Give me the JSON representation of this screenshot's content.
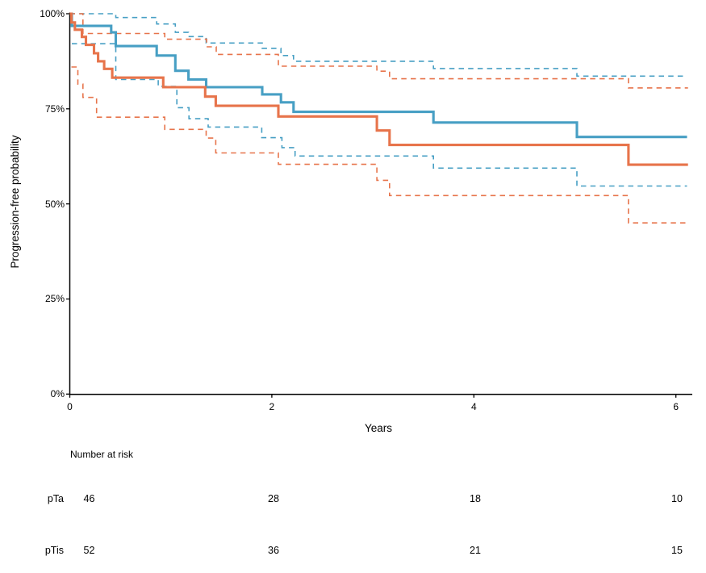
{
  "figure": {
    "background": "#FFFFFF"
  },
  "axes": {
    "y_title": "Progression-free probability",
    "x_title": "Years",
    "y_ticks": [
      {
        "pct": 100,
        "label": "100%"
      },
      {
        "pct": 75,
        "label": "75%"
      },
      {
        "pct": 50,
        "label": "50%"
      },
      {
        "pct": 25,
        "label": "25%"
      },
      {
        "pct": 0,
        "label": "0%"
      }
    ],
    "x_ticks": [
      {
        "t": 0,
        "label": "0"
      },
      {
        "t": 2,
        "label": "2"
      },
      {
        "t": 4,
        "label": "4"
      },
      {
        "t": 6,
        "label": "6"
      }
    ]
  },
  "risk_table": {
    "title": "Number at risk",
    "time_points": [
      0,
      2,
      4,
      6
    ],
    "rows": [
      {
        "label": "pTa",
        "counts": [
          "46",
          "28",
          "18",
          "10"
        ]
      },
      {
        "label": "pTis",
        "counts": [
          "52",
          "36",
          "21",
          "15"
        ]
      }
    ]
  },
  "chart_data": {
    "type": "line",
    "subtype": "kaplan_meier_step",
    "title": "",
    "xlabel": "Years",
    "ylabel": "Progression-free probability",
    "xlim": [
      0,
      6.17
    ],
    "ylim": [
      0,
      100
    ],
    "x_ticks": [
      0,
      2,
      4,
      6
    ],
    "y_tick_labels": [
      "0%",
      "25%",
      "50%",
      "75%",
      "100%"
    ],
    "legend": "none",
    "grid": false,
    "colors": {
      "pTa": "#479FC4",
      "pTis": "#E7744B",
      "axis": "#000000",
      "text": "#000000"
    },
    "groups": [
      {
        "name": "pTa",
        "color": "#479FC4",
        "n_at_risk": [
          46,
          28,
          18,
          10
        ]
      },
      {
        "name": "pTis",
        "color": "#E7744B",
        "n_at_risk": [
          52,
          36,
          21,
          15
        ]
      }
    ],
    "series": [
      {
        "name": "pTa-estimate",
        "group": "pTa",
        "role": "estimate",
        "style": "solid",
        "points": [
          [
            0,
            100
          ],
          [
            0.02,
            96.8
          ],
          [
            0.41,
            95.1
          ],
          [
            0.455,
            91.5
          ],
          [
            0.86,
            89.0
          ],
          [
            1.045,
            85.0
          ],
          [
            1.175,
            82.7
          ],
          [
            1.35,
            80.7
          ],
          [
            1.905,
            78.8
          ],
          [
            2.09,
            76.7
          ],
          [
            2.215,
            74.2
          ],
          [
            3.6,
            71.4
          ],
          [
            5.02,
            67.6
          ]
        ],
        "t_end": 6.11
      },
      {
        "name": "pTa-upper-ci",
        "group": "pTa",
        "role": "upper_ci",
        "style": "dashed",
        "points": [
          [
            0,
            100
          ],
          [
            0.455,
            99.0
          ],
          [
            0.86,
            97.3
          ],
          [
            1.045,
            95.1
          ],
          [
            1.175,
            94.0
          ],
          [
            1.35,
            92.3
          ],
          [
            1.905,
            90.9
          ],
          [
            2.09,
            89.0
          ],
          [
            2.215,
            87.5
          ],
          [
            3.6,
            85.6
          ],
          [
            5.02,
            83.6
          ]
        ],
        "t_end": 6.11
      },
      {
        "name": "pTa-lower-ci",
        "group": "pTa",
        "role": "lower_ci",
        "style": "dashed",
        "points": [
          [
            0.02,
            92.1
          ],
          [
            0.455,
            82.7
          ],
          [
            0.875,
            80.9
          ],
          [
            1.06,
            75.3
          ],
          [
            1.18,
            72.4
          ],
          [
            1.37,
            70.2
          ],
          [
            1.9,
            67.4
          ],
          [
            2.1,
            64.8
          ],
          [
            2.23,
            62.6
          ],
          [
            3.6,
            59.4
          ],
          [
            5.02,
            54.7
          ]
        ],
        "t_end": 6.11
      },
      {
        "name": "pTis-estimate",
        "group": "pTis",
        "role": "estimate",
        "style": "solid",
        "points": [
          [
            0,
            100
          ],
          [
            0.016,
            97.7
          ],
          [
            0.05,
            95.8
          ],
          [
            0.12,
            93.9
          ],
          [
            0.16,
            91.8
          ],
          [
            0.24,
            89.6
          ],
          [
            0.28,
            87.5
          ],
          [
            0.34,
            85.5
          ],
          [
            0.42,
            83.2
          ],
          [
            0.925,
            80.7
          ],
          [
            1.34,
            78.2
          ],
          [
            1.445,
            75.8
          ],
          [
            2.065,
            73.0
          ],
          [
            3.04,
            69.3
          ],
          [
            3.165,
            65.5
          ],
          [
            5.53,
            60.3
          ]
        ],
        "t_end": 6.12
      },
      {
        "name": "pTis-upper-ci",
        "group": "pTis",
        "role": "upper_ci",
        "style": "dashed",
        "points": [
          [
            0,
            100
          ],
          [
            0.13,
            94.8
          ],
          [
            0.94,
            93.3
          ],
          [
            1.355,
            91.3
          ],
          [
            1.45,
            89.3
          ],
          [
            2.065,
            86.2
          ],
          [
            3.04,
            84.9
          ],
          [
            3.165,
            82.9
          ],
          [
            5.53,
            80.5
          ]
        ],
        "t_end": 6.12
      },
      {
        "name": "pTis-lower-ci",
        "group": "pTis",
        "role": "lower_ci",
        "style": "dashed",
        "points": [
          [
            0.016,
            86.0
          ],
          [
            0.08,
            81.5
          ],
          [
            0.13,
            78.0
          ],
          [
            0.265,
            72.8
          ],
          [
            0.94,
            69.6
          ],
          [
            1.35,
            67.3
          ],
          [
            1.445,
            63.4
          ],
          [
            2.065,
            60.4
          ],
          [
            3.04,
            56.2
          ],
          [
            3.165,
            52.2
          ],
          [
            5.53,
            45.0
          ]
        ],
        "t_end": 6.12
      }
    ],
    "risk_table": {
      "title": "Number at risk",
      "time_points": [
        0,
        2,
        4,
        6
      ],
      "rows": [
        {
          "label": "pTa",
          "counts": [
            46,
            28,
            18,
            10
          ]
        },
        {
          "label": "pTis",
          "counts": [
            52,
            36,
            21,
            15
          ]
        }
      ]
    }
  }
}
